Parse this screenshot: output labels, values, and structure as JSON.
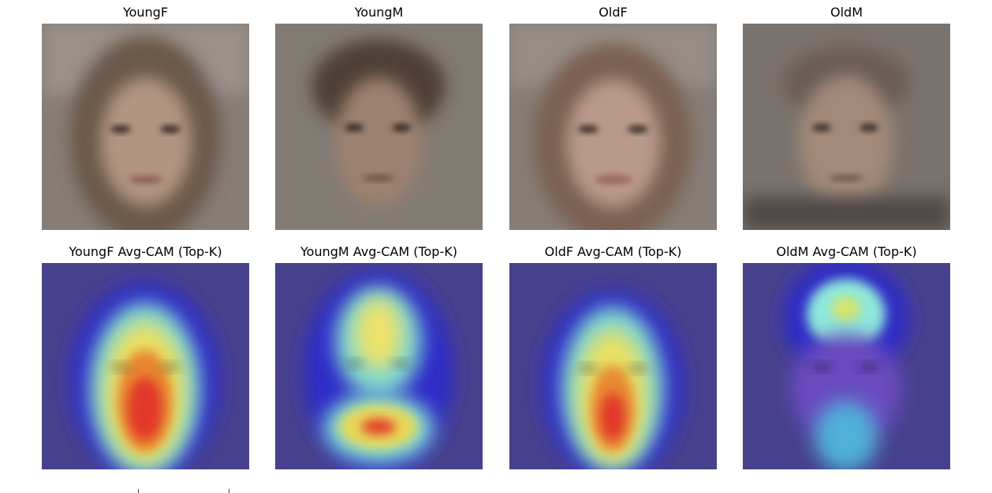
{
  "figure": {
    "panels": [
      {
        "title": "YoungF",
        "kind": "average-face",
        "hair": "long",
        "tone": "#a68a78"
      },
      {
        "title": "YoungM",
        "kind": "average-face",
        "hair": "short",
        "tone": "#8a7264"
      },
      {
        "title": "OldF",
        "kind": "average-face",
        "hair": "long",
        "tone": "#ad8f7c"
      },
      {
        "title": "OldM",
        "kind": "average-face",
        "hair": "short",
        "tone": "#927a6c"
      },
      {
        "title": "YoungF Avg-CAM (Top-K)",
        "kind": "cam-overlay",
        "focus": "nose-mouth"
      },
      {
        "title": "YoungM Avg-CAM (Top-K)",
        "kind": "cam-overlay",
        "focus": "forehead-mouth"
      },
      {
        "title": "OldF Avg-CAM (Top-K)",
        "kind": "cam-overlay",
        "focus": "nose-mouth"
      },
      {
        "title": "OldM Avg-CAM (Top-K)",
        "kind": "cam-overlay",
        "focus": "forehead"
      }
    ]
  },
  "colors": {
    "cam_background": "#46408c",
    "cam_blue": "#2a2ae0",
    "cam_cyan": "#7fe0d8",
    "cam_yellow": "#f2e35a",
    "cam_red": "#e23a2c",
    "face_background": "#837a72"
  }
}
